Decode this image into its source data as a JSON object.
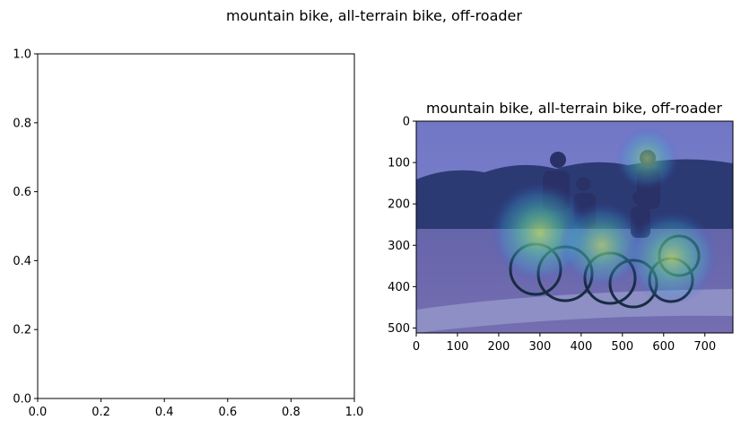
{
  "suptitle": "mountain bike, all-terrain bike, off-roader",
  "chart_data": [
    {
      "type": "empty-axes",
      "title": "",
      "xlim": [
        0,
        1
      ],
      "ylim": [
        0,
        1
      ],
      "xticks": [
        "0.0",
        "0.2",
        "0.4",
        "0.6",
        "0.8",
        "1.0"
      ],
      "yticks": [
        "0.0",
        "0.2",
        "0.4",
        "0.6",
        "0.8",
        "1.0"
      ]
    },
    {
      "type": "heatmap",
      "title": "mountain bike, all-terrain bike, off-roader",
      "xlim": [
        0,
        768
      ],
      "ylim": [
        512,
        0
      ],
      "xticks": [
        "0",
        "100",
        "200",
        "300",
        "400",
        "500",
        "600",
        "700"
      ],
      "yticks": [
        "0",
        "100",
        "200",
        "300",
        "400",
        "500"
      ],
      "image": "photo of a family of four riding bicycles on a path, with a saliency heatmap overlay",
      "hotspots": [
        {
          "x": 300,
          "y": 270,
          "intensity": 0.9
        },
        {
          "x": 450,
          "y": 300,
          "intensity": 0.7
        },
        {
          "x": 620,
          "y": 330,
          "intensity": 0.8
        },
        {
          "x": 560,
          "y": 90,
          "intensity": 0.4
        }
      ]
    }
  ]
}
